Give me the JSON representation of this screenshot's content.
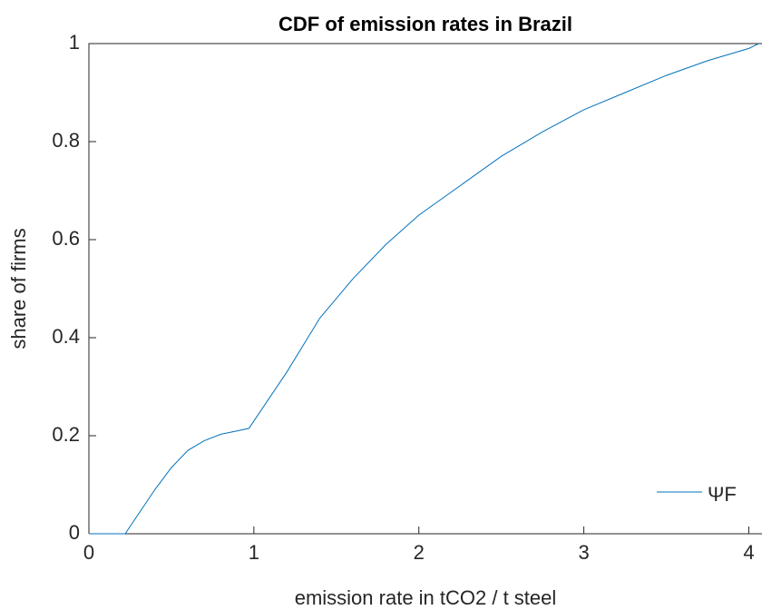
{
  "chart_data": {
    "type": "line",
    "title": "CDF of emission rates in Brazil",
    "x_label": "emission rate in tCO2 / t steel",
    "y_label": "share of firms",
    "x": [
      0,
      0.22,
      0.3,
      0.4,
      0.5,
      0.6,
      0.7,
      0.8,
      0.9,
      0.97,
      1.1,
      1.2,
      1.4,
      1.6,
      1.8,
      2.0,
      2.25,
      2.5,
      2.75,
      3.0,
      3.25,
      3.5,
      3.75,
      4.0,
      4.06
    ],
    "series": [
      {
        "name": "ΨF",
        "color": "#0072bd",
        "values": [
          0,
          0,
          0.04,
          0.09,
          0.135,
          0.17,
          0.19,
          0.203,
          0.21,
          0.215,
          0.28,
          0.33,
          0.44,
          0.52,
          0.59,
          0.65,
          0.71,
          0.77,
          0.82,
          0.865,
          0.9,
          0.935,
          0.965,
          0.99,
          1.0
        ]
      }
    ],
    "xlim": [
      0,
      4.08
    ],
    "ylim": [
      0,
      1
    ],
    "xticks": [
      0,
      1,
      2,
      3,
      4
    ],
    "yticks": [
      0,
      0.2,
      0.4,
      0.6,
      0.8,
      1
    ],
    "legend": "southeast"
  }
}
